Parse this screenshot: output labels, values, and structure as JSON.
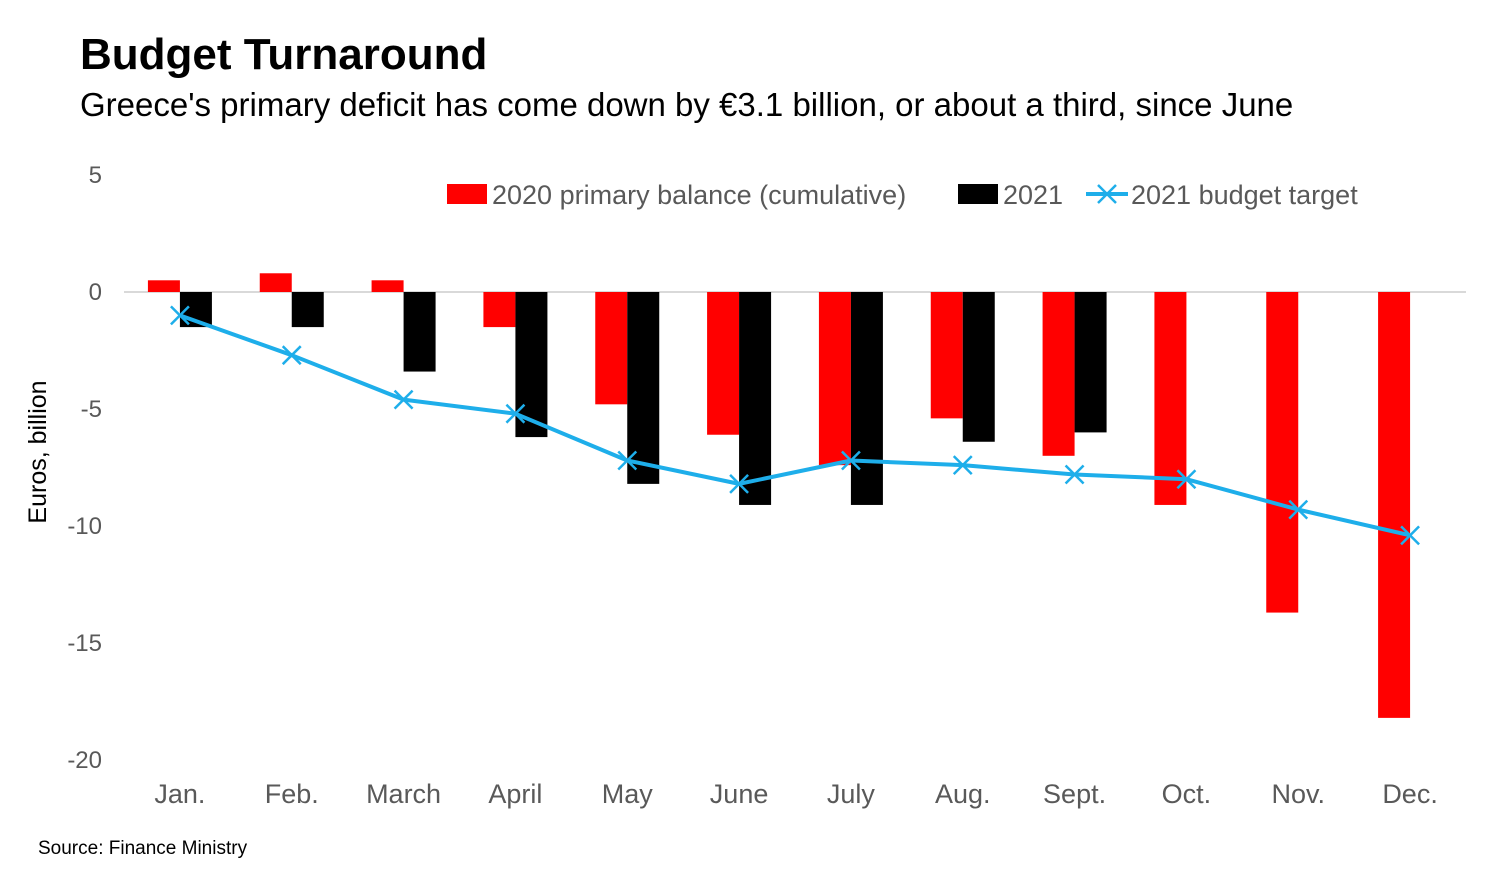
{
  "title": "Budget Turnaround",
  "subtitle": "Greece's primary deficit has come down by €3.1 billion, or about a third, since June",
  "source": "Source: Finance Ministry",
  "colors": {
    "s2020": "#ff0000",
    "s2021": "#000000",
    "target": "#1eaeea",
    "zero_line": "#d9d9d9",
    "tick_text": "#595959"
  },
  "chart_data": {
    "type": "bar",
    "categories": [
      "Jan.",
      "Feb.",
      "March",
      "April",
      "May",
      "June",
      "July",
      "Aug.",
      "Sept.",
      "Oct.",
      "Nov.",
      "Dec."
    ],
    "series": [
      {
        "name": "2020 primary balance (cumulative)",
        "type": "bar",
        "values": [
          0.5,
          0.8,
          0.5,
          -1.5,
          -4.8,
          -6.1,
          -7.4,
          -5.4,
          -7.0,
          -9.1,
          -13.7,
          -18.2
        ]
      },
      {
        "name": "2021",
        "type": "bar",
        "values": [
          -1.5,
          -1.5,
          -3.4,
          -6.2,
          -8.2,
          -9.1,
          -9.1,
          -6.4,
          -6.0,
          null,
          null,
          null
        ]
      },
      {
        "name": "2021 budget target",
        "type": "line",
        "marker": "x",
        "values": [
          -1.0,
          -2.7,
          -4.6,
          -5.2,
          -7.2,
          -8.2,
          -7.2,
          -7.4,
          -7.8,
          -8.0,
          -9.3,
          -10.4
        ]
      }
    ],
    "ylabel": "Euros, billion",
    "xlabel": "",
    "ylim": [
      -20,
      5
    ],
    "yticks": [
      5,
      0,
      -5,
      -10,
      -15,
      -20
    ],
    "grid": false,
    "legend_position": "top-center"
  }
}
